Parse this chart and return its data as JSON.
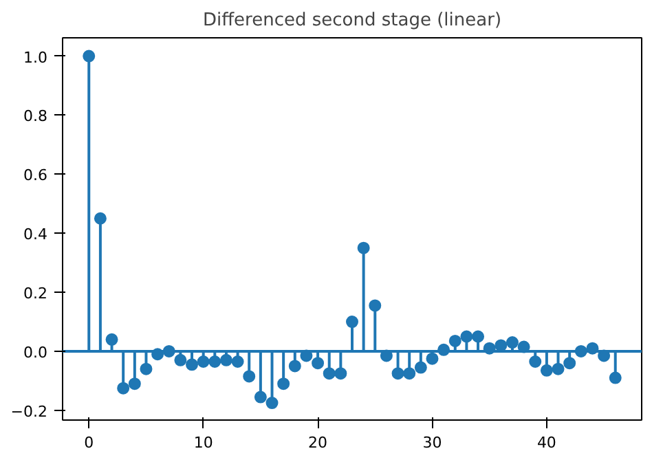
{
  "chart_data": {
    "type": "lollipop",
    "title": "Differenced second stage (linear)",
    "x": [
      0,
      1,
      2,
      3,
      4,
      5,
      6,
      7,
      8,
      9,
      10,
      11,
      12,
      13,
      14,
      15,
      16,
      17,
      18,
      19,
      20,
      21,
      22,
      23,
      24,
      25,
      26,
      27,
      28,
      29,
      30,
      31,
      32,
      33,
      34,
      35,
      36,
      37,
      38,
      39,
      40,
      41,
      42,
      43,
      44,
      45,
      46
    ],
    "values": [
      1.0,
      0.45,
      0.04,
      -0.125,
      -0.11,
      -0.06,
      -0.01,
      0.0,
      -0.03,
      -0.045,
      -0.035,
      -0.035,
      -0.03,
      -0.035,
      -0.085,
      -0.155,
      -0.175,
      -0.11,
      -0.05,
      -0.015,
      -0.04,
      -0.075,
      -0.075,
      0.1,
      0.35,
      0.155,
      -0.015,
      -0.075,
      -0.075,
      -0.055,
      -0.025,
      0.005,
      0.035,
      0.05,
      0.05,
      0.01,
      0.02,
      0.03,
      0.015,
      -0.035,
      -0.065,
      -0.06,
      -0.04,
      0.0,
      0.01,
      -0.015,
      -0.09
    ],
    "color": "#1f77b4",
    "marker": "circle",
    "xlim": [
      -2.3,
      48.3
    ],
    "ylim": [
      -0.233,
      1.062
    ],
    "xticks": [
      0,
      10,
      20,
      30,
      40
    ],
    "yticks": [
      {
        "value": -0.2,
        "label": "−0.2"
      },
      {
        "value": 0,
        "label": "0.0"
      },
      0.2,
      0.4,
      0.6,
      0.8,
      {
        "value": 1.0,
        "label": "1.0"
      }
    ],
    "ref_lines": [
      {
        "axis": "y",
        "value": 0,
        "color": "#1f77b4"
      }
    ]
  }
}
